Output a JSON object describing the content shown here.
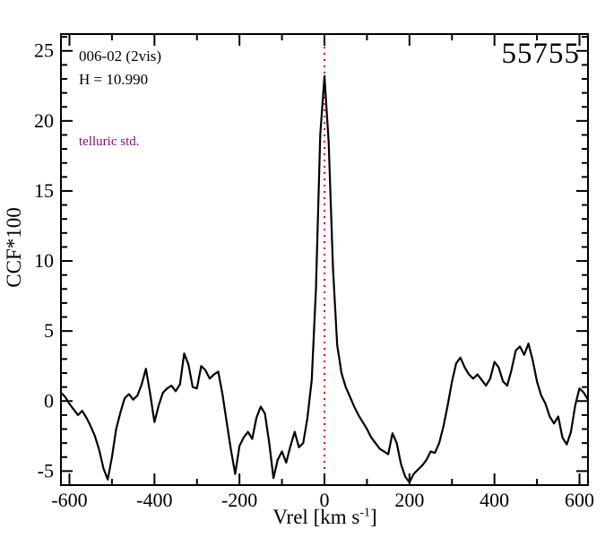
{
  "figure": {
    "background": "#ffffff",
    "colors": {
      "curve": "#000000",
      "frame": "#000000",
      "ref_line": "#dd1111",
      "telluric_text": "#7d0f7d",
      "text": "#000000"
    }
  },
  "chart_data": {
    "type": "line",
    "title": "55755",
    "xlabel": "Vrel [km s^-1]",
    "xlabel_parts": {
      "prefix": "Vrel [km s",
      "sup": "-1",
      "suffix": "]"
    },
    "ylabel": "CCF*100",
    "xlim": [
      -620,
      620
    ],
    "ylim": [
      -6,
      26.2
    ],
    "x_ticks": [
      -600,
      -400,
      -200,
      0,
      200,
      400,
      600
    ],
    "x_minor_ticks": [
      -500,
      -300,
      -100,
      100,
      300,
      500
    ],
    "y_ticks": [
      -5,
      0,
      5,
      10,
      15,
      20,
      25
    ],
    "y_minor_step": 1,
    "grid": false,
    "legend": false,
    "ref_line_x": 0,
    "annotations": [
      {
        "text": "006-02 (2vis)",
        "color": "#000000"
      },
      {
        "text": "H = 10.990",
        "color": "#000000"
      },
      {
        "text": "telluric std.",
        "color": "#7d0f7d"
      },
      {
        "text": "55755",
        "color": "#000000"
      }
    ],
    "series": [
      {
        "name": "CCF",
        "color": "#000000",
        "x": [
          -620,
          -610,
          -600,
          -590,
          -580,
          -570,
          -560,
          -550,
          -540,
          -530,
          -520,
          -510,
          -500,
          -490,
          -480,
          -470,
          -460,
          -450,
          -440,
          -430,
          -420,
          -410,
          -400,
          -390,
          -380,
          -370,
          -360,
          -350,
          -340,
          -330,
          -320,
          -310,
          -300,
          -290,
          -280,
          -270,
          -260,
          -250,
          -240,
          -230,
          -220,
          -210,
          -200,
          -190,
          -180,
          -170,
          -160,
          -150,
          -140,
          -130,
          -120,
          -110,
          -100,
          -90,
          -80,
          -70,
          -60,
          -50,
          -40,
          -30,
          -20,
          -10,
          0,
          10,
          20,
          30,
          40,
          50,
          60,
          70,
          80,
          90,
          100,
          110,
          120,
          130,
          140,
          150,
          160,
          170,
          180,
          190,
          200,
          210,
          220,
          230,
          240,
          250,
          260,
          270,
          280,
          290,
          300,
          310,
          320,
          330,
          340,
          350,
          360,
          370,
          380,
          390,
          400,
          410,
          420,
          430,
          440,
          450,
          460,
          470,
          480,
          490,
          500,
          510,
          520,
          530,
          540,
          550,
          560,
          570,
          580,
          590,
          600,
          610,
          620
        ],
        "y": [
          0.6,
          0.3,
          -0.2,
          -0.6,
          -1.0,
          -0.7,
          -1.2,
          -1.8,
          -2.5,
          -3.5,
          -4.8,
          -5.6,
          -4.0,
          -2.0,
          -0.8,
          0.2,
          0.5,
          0.1,
          0.4,
          1.2,
          2.3,
          0.5,
          -1.5,
          -0.3,
          0.6,
          0.9,
          1.1,
          0.7,
          1.2,
          3.4,
          2.6,
          1.0,
          0.9,
          2.5,
          2.2,
          1.6,
          1.9,
          2.1,
          0.5,
          -1.5,
          -3.5,
          -5.2,
          -3.2,
          -2.6,
          -2.2,
          -2.7,
          -1.2,
          -0.4,
          -0.9,
          -3.0,
          -5.5,
          -4.2,
          -3.6,
          -4.4,
          -3.2,
          -2.2,
          -3.3,
          -3.0,
          -1.2,
          1.5,
          8.0,
          19.0,
          23.2,
          18.5,
          9.5,
          4.0,
          2.0,
          1.0,
          0.3,
          -0.4,
          -1.0,
          -1.5,
          -2.0,
          -2.6,
          -3.0,
          -3.4,
          -3.6,
          -3.8,
          -2.3,
          -3.0,
          -4.5,
          -5.4,
          -5.8,
          -5.2,
          -4.9,
          -4.6,
          -4.2,
          -3.6,
          -3.7,
          -3.0,
          -1.8,
          -0.3,
          1.4,
          2.7,
          3.1,
          2.4,
          1.9,
          1.6,
          1.9,
          1.5,
          1.1,
          1.6,
          2.8,
          2.4,
          1.4,
          1.1,
          2.2,
          3.6,
          3.9,
          3.3,
          4.1,
          2.9,
          1.4,
          0.4,
          -0.2,
          -1.1,
          -1.6,
          -1.1,
          -2.6,
          -3.1,
          -2.2,
          -0.3,
          0.9,
          0.6,
          0.1
        ]
      }
    ]
  }
}
